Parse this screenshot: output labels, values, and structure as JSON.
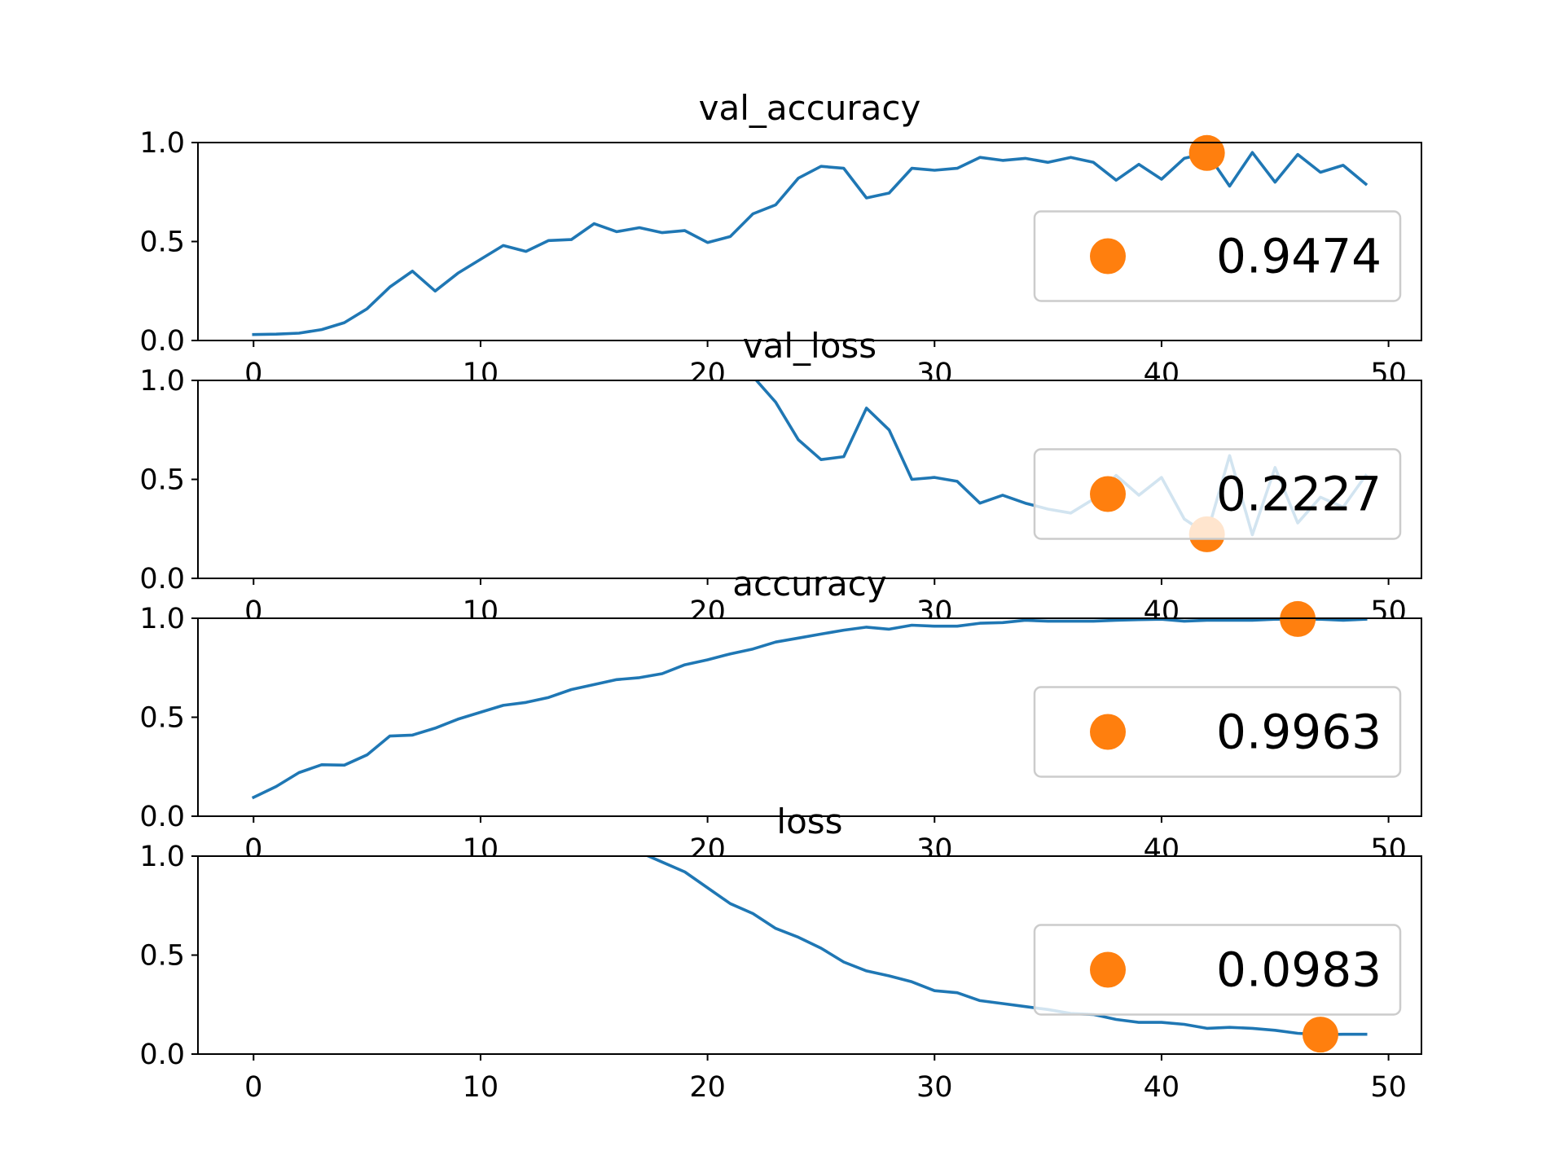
{
  "colors": {
    "line": "#1f77b4",
    "marker": "#ff7f0e",
    "legend_border": "#cccccc",
    "axes": "#000000"
  },
  "chart_data": [
    {
      "type": "line",
      "title": "val_accuracy",
      "xlim": [
        -2.45,
        51.45
      ],
      "ylim": [
        0,
        1
      ],
      "xticks": [
        0,
        10,
        20,
        30,
        40,
        50
      ],
      "yticks": [
        0.0,
        0.5,
        1.0
      ],
      "xtick_labels": [
        "0",
        "10",
        "20",
        "30",
        "40",
        "50"
      ],
      "ytick_labels": [
        "0.0",
        "0.5",
        "1.0"
      ],
      "x": [
        0,
        1,
        2,
        3,
        4,
        5,
        6,
        7,
        8,
        9,
        10,
        11,
        12,
        13,
        14,
        15,
        16,
        17,
        18,
        19,
        20,
        21,
        22,
        23,
        24,
        25,
        26,
        27,
        28,
        29,
        30,
        31,
        32,
        33,
        34,
        35,
        36,
        37,
        38,
        39,
        40,
        41,
        42,
        43,
        44,
        45,
        46,
        47,
        48,
        49
      ],
      "series": [
        {
          "values": [
            0.03,
            0.032,
            0.037,
            0.055,
            0.09,
            0.16,
            0.27,
            0.35,
            0.25,
            0.34,
            0.41,
            0.48,
            0.45,
            0.505,
            0.51,
            0.59,
            0.55,
            0.57,
            0.545,
            0.555,
            0.495,
            0.525,
            0.64,
            0.685,
            0.82,
            0.88,
            0.87,
            0.72,
            0.745,
            0.87,
            0.86,
            0.87,
            0.925,
            0.91,
            0.92,
            0.9,
            0.925,
            0.9,
            0.81,
            0.89,
            0.815,
            0.92,
            0.947,
            0.78,
            0.95,
            0.8,
            0.94,
            0.85,
            0.885,
            0.79
          ]
        }
      ],
      "marker": {
        "x": 42,
        "y": 0.9474
      },
      "legend": {
        "label": "0.9474",
        "placement": "center-right"
      }
    },
    {
      "type": "line",
      "title": "val_loss",
      "xlim": [
        -2.45,
        51.45
      ],
      "ylim": [
        0,
        1
      ],
      "xticks": [
        0,
        10,
        20,
        30,
        40,
        50
      ],
      "yticks": [
        0.0,
        0.5,
        1.0
      ],
      "xtick_labels": [
        "0",
        "10",
        "20",
        "30",
        "40",
        "50"
      ],
      "ytick_labels": [
        "0.0",
        "0.5",
        "1.0"
      ],
      "x": [
        22,
        23,
        24,
        25,
        26,
        27,
        28,
        29,
        30,
        31,
        32,
        33,
        34,
        35,
        36,
        37,
        38,
        39,
        40,
        41,
        42,
        43,
        44,
        45,
        46,
        47,
        48,
        49
      ],
      "series": [
        {
          "values": [
            1.02,
            0.89,
            0.7,
            0.6,
            0.615,
            0.86,
            0.75,
            0.5,
            0.51,
            0.49,
            0.38,
            0.42,
            0.38,
            0.35,
            0.33,
            0.4,
            0.52,
            0.42,
            0.51,
            0.3,
            0.2227,
            0.62,
            0.22,
            0.56,
            0.28,
            0.41,
            0.36,
            0.52
          ]
        }
      ],
      "marker": {
        "x": 42,
        "y": 0.2227
      },
      "legend": {
        "label": "0.2227",
        "placement": "center-right"
      }
    },
    {
      "type": "line",
      "title": "accuracy",
      "xlim": [
        -2.45,
        51.45
      ],
      "ylim": [
        0,
        1
      ],
      "xticks": [
        0,
        10,
        20,
        30,
        40,
        50
      ],
      "yticks": [
        0.0,
        0.5,
        1.0
      ],
      "xtick_labels": [
        "0",
        "10",
        "20",
        "30",
        "40",
        "50"
      ],
      "ytick_labels": [
        "0.0",
        "0.5",
        "1.0"
      ],
      "x": [
        0,
        1,
        2,
        3,
        4,
        5,
        6,
        7,
        8,
        9,
        10,
        11,
        12,
        13,
        14,
        15,
        16,
        17,
        18,
        19,
        20,
        21,
        22,
        23,
        24,
        25,
        26,
        27,
        28,
        29,
        30,
        31,
        32,
        33,
        34,
        35,
        36,
        37,
        38,
        39,
        40,
        41,
        42,
        43,
        44,
        45,
        46,
        47,
        48,
        49
      ],
      "series": [
        {
          "values": [
            0.095,
            0.15,
            0.22,
            0.26,
            0.258,
            0.31,
            0.405,
            0.41,
            0.445,
            0.49,
            0.525,
            0.56,
            0.575,
            0.6,
            0.64,
            0.665,
            0.69,
            0.7,
            0.72,
            0.765,
            0.79,
            0.82,
            0.845,
            0.88,
            0.9,
            0.92,
            0.94,
            0.955,
            0.945,
            0.965,
            0.96,
            0.96,
            0.975,
            0.978,
            0.99,
            0.985,
            0.985,
            0.985,
            0.99,
            0.993,
            0.995,
            0.985,
            0.99,
            0.99,
            0.99,
            0.995,
            0.9963,
            0.995,
            0.99,
            0.995
          ]
        }
      ],
      "marker": {
        "x": 46,
        "y": 0.9963
      },
      "legend": {
        "label": "0.9963",
        "placement": "center-right"
      }
    },
    {
      "type": "line",
      "title": "loss",
      "xlim": [
        -2.45,
        51.45
      ],
      "ylim": [
        0,
        1
      ],
      "xticks": [
        0,
        10,
        20,
        30,
        40,
        50
      ],
      "yticks": [
        0.0,
        0.5,
        1.0
      ],
      "xtick_labels": [
        "0",
        "10",
        "20",
        "30",
        "40",
        "50"
      ],
      "ytick_labels": [
        "0.0",
        "0.5",
        "1.0"
      ],
      "x": [
        17,
        18,
        19,
        20,
        21,
        22,
        23,
        24,
        25,
        26,
        27,
        28,
        29,
        30,
        31,
        32,
        33,
        34,
        35,
        36,
        37,
        38,
        39,
        40,
        41,
        42,
        43,
        44,
        45,
        46,
        47,
        48,
        49
      ],
      "series": [
        {
          "values": [
            1.02,
            0.97,
            0.92,
            0.84,
            0.76,
            0.71,
            0.635,
            0.59,
            0.535,
            0.465,
            0.42,
            0.395,
            0.365,
            0.32,
            0.31,
            0.27,
            0.255,
            0.24,
            0.225,
            0.205,
            0.2,
            0.175,
            0.16,
            0.16,
            0.15,
            0.13,
            0.135,
            0.13,
            0.12,
            0.105,
            0.0983,
            0.1,
            0.1
          ]
        }
      ],
      "marker": {
        "x": 47,
        "y": 0.0983
      },
      "legend": {
        "label": "0.0983",
        "placement": "center-right"
      }
    }
  ]
}
